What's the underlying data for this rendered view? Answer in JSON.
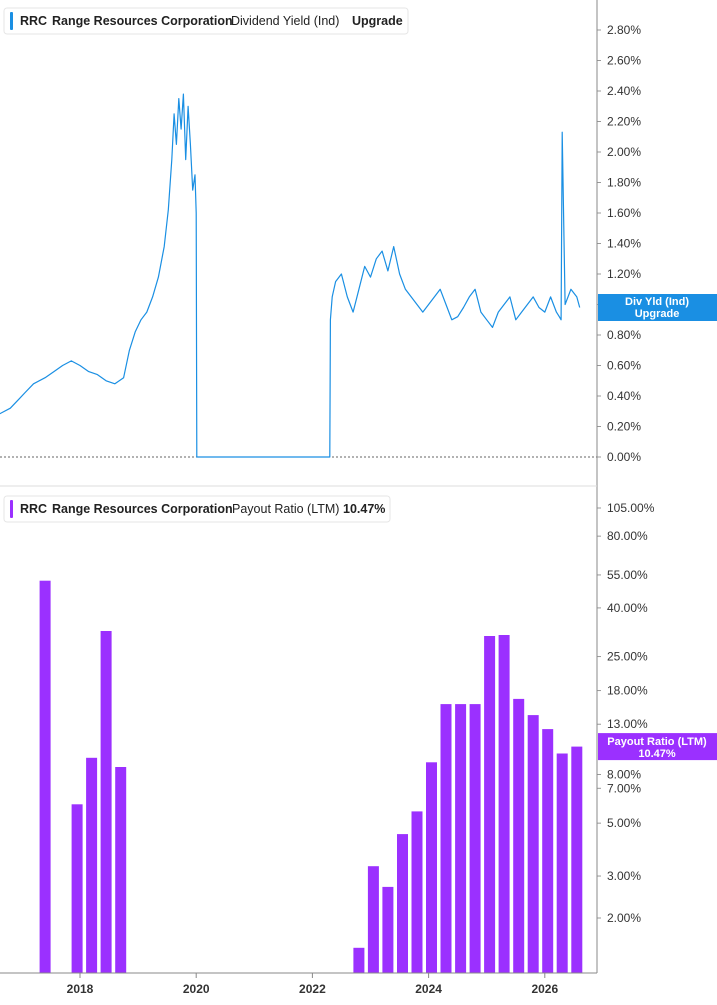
{
  "chart_data": [
    {
      "type": "line",
      "legend": {
        "ticker": "RRC",
        "company": "Range Resources Corporation",
        "metric": "Dividend Yield (Ind)",
        "value": "Upgrade"
      },
      "price_tag": {
        "line1": "Div Yld (Ind)",
        "line2": "Upgrade",
        "value": 0.98
      },
      "y_ticks": [
        "2.80%",
        "2.60%",
        "2.40%",
        "2.20%",
        "2.00%",
        "1.80%",
        "1.60%",
        "1.40%",
        "1.20%",
        "1.00%",
        "0.80%",
        "0.60%",
        "0.40%",
        "0.20%",
        "0.00%"
      ],
      "ylim": [
        0,
        2.8
      ],
      "unit": "%",
      "color": "#1a8fe3",
      "series": [
        {
          "x": [
            2016.0,
            2016.2,
            2016.4,
            2016.6,
            2016.8,
            2016.95,
            2017.05,
            2017.2,
            2017.4,
            2017.55,
            2017.7,
            2017.85,
            2018.0,
            2018.15,
            2018.3,
            2018.45,
            2018.6,
            2018.75,
            2018.85,
            2018.95,
            2019.05,
            2019.15,
            2019.25,
            2019.35,
            2019.45,
            2019.52,
            2019.58,
            2019.62,
            2019.66,
            2019.7,
            2019.74,
            2019.78,
            2019.82,
            2019.86,
            2019.9,
            2019.94,
            2019.98,
            2020.0,
            2020.01,
            2022.3,
            2022.31,
            2022.34,
            2022.4,
            2022.5,
            2022.6,
            2022.7,
            2022.8,
            2022.9,
            2023.0,
            2023.1,
            2023.2,
            2023.3,
            2023.4,
            2023.5,
            2023.6,
            2023.7,
            2023.8,
            2023.9,
            2024.0,
            2024.1,
            2024.2,
            2024.3,
            2024.4,
            2024.5,
            2024.6,
            2024.7,
            2024.8,
            2024.9,
            2025.0,
            2025.1,
            2025.2,
            2025.3,
            2025.4,
            2025.5,
            2025.6,
            2025.7,
            2025.8,
            2025.9,
            2026.0,
            2026.1,
            2026.2,
            2026.25,
            2026.28,
            2026.3,
            2026.35,
            2026.45,
            2026.55,
            2026.6
          ],
          "y": [
            0.2,
            0.22,
            0.25,
            0.28,
            0.32,
            0.38,
            0.42,
            0.48,
            0.52,
            0.56,
            0.6,
            0.63,
            0.6,
            0.56,
            0.54,
            0.5,
            0.48,
            0.52,
            0.7,
            0.82,
            0.9,
            0.95,
            1.05,
            1.18,
            1.38,
            1.62,
            1.95,
            2.25,
            2.05,
            2.35,
            2.15,
            2.38,
            1.95,
            2.3,
            2.05,
            1.75,
            1.85,
            1.6,
            0.0,
            0.0,
            0.9,
            1.05,
            1.15,
            1.2,
            1.05,
            0.95,
            1.1,
            1.25,
            1.18,
            1.3,
            1.35,
            1.22,
            1.38,
            1.2,
            1.1,
            1.05,
            1.0,
            0.95,
            1.0,
            1.05,
            1.1,
            1.0,
            0.9,
            0.92,
            0.98,
            1.05,
            1.1,
            0.95,
            0.9,
            0.85,
            0.95,
            1.0,
            1.05,
            0.9,
            0.95,
            1.0,
            1.05,
            0.98,
            0.95,
            1.05,
            0.95,
            0.92,
            0.9,
            2.13,
            1.0,
            1.1,
            1.05,
            0.98
          ]
        }
      ]
    },
    {
      "type": "bar",
      "legend": {
        "ticker": "RRC",
        "company": "Range Resources Corporation",
        "metric": "Payout Ratio (LTM)",
        "value": "10.47%"
      },
      "price_tag": {
        "line1": "Payout Ratio (LTM)",
        "line2": "10.47%",
        "value": 10.47
      },
      "y_scale": "log",
      "y_ticks": [
        {
          "label": "105.00%",
          "value": 105
        },
        {
          "label": "80.00%",
          "value": 80
        },
        {
          "label": "55.00%",
          "value": 55
        },
        {
          "label": "40.00%",
          "value": 40
        },
        {
          "label": "25.00%",
          "value": 25
        },
        {
          "label": "18.00%",
          "value": 18
        },
        {
          "label": "13.00%",
          "value": 13
        },
        {
          "label": "8.00%",
          "value": 8
        },
        {
          "label": "7.00%",
          "value": 7
        },
        {
          "label": "5.00%",
          "value": 5
        },
        {
          "label": "3.00%",
          "value": 3
        },
        {
          "label": "2.00%",
          "value": 2
        }
      ],
      "color": "#9b30ff",
      "x": [
        2017.4,
        2017.95,
        2018.2,
        2018.45,
        2018.7,
        2022.8,
        2023.05,
        2023.3,
        2023.55,
        2023.8,
        2024.05,
        2024.3,
        2024.55,
        2024.8,
        2025.05,
        2025.3,
        2025.55,
        2025.8,
        2026.05,
        2026.3,
        2026.55
      ],
      "values": [
        52.0,
        6.0,
        9.4,
        32.0,
        8.6,
        1.5,
        3.3,
        2.7,
        4.5,
        5.6,
        9.0,
        15.8,
        15.8,
        15.8,
        30.5,
        30.8,
        16.6,
        14.2,
        12.4,
        9.8,
        10.47
      ]
    }
  ],
  "x_axis": {
    "ticks": [
      {
        "label": "2018",
        "value": 2018
      },
      {
        "label": "2020",
        "value": 2020
      },
      {
        "label": "2022",
        "value": 2022
      },
      {
        "label": "2024",
        "value": 2024
      },
      {
        "label": "2026",
        "value": 2026
      }
    ]
  }
}
